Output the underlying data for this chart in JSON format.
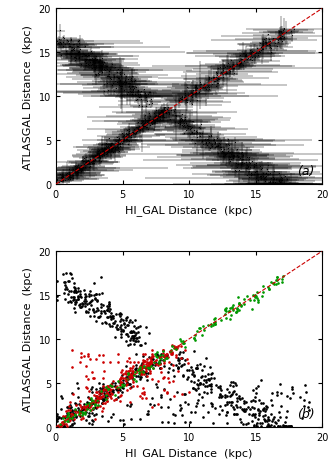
{
  "xlim": [
    0,
    20
  ],
  "ylim": [
    0,
    20
  ],
  "xlabel": "HI_GAL Distance  (kpc)",
  "ylabel": "ATLASGAL Distance  (kpc)",
  "label_a": "(a)",
  "label_b": "(b)",
  "diag_color": "#cc0000",
  "diag_style": "--",
  "point_color_black": "#000000",
  "point_color_red": "#cc0000",
  "point_color_green": "#009900",
  "tick_fontsize": 7,
  "label_fontsize": 8,
  "xticks": [
    0,
    5,
    10,
    15,
    20
  ],
  "yticks": [
    0,
    5,
    10,
    15,
    20
  ]
}
